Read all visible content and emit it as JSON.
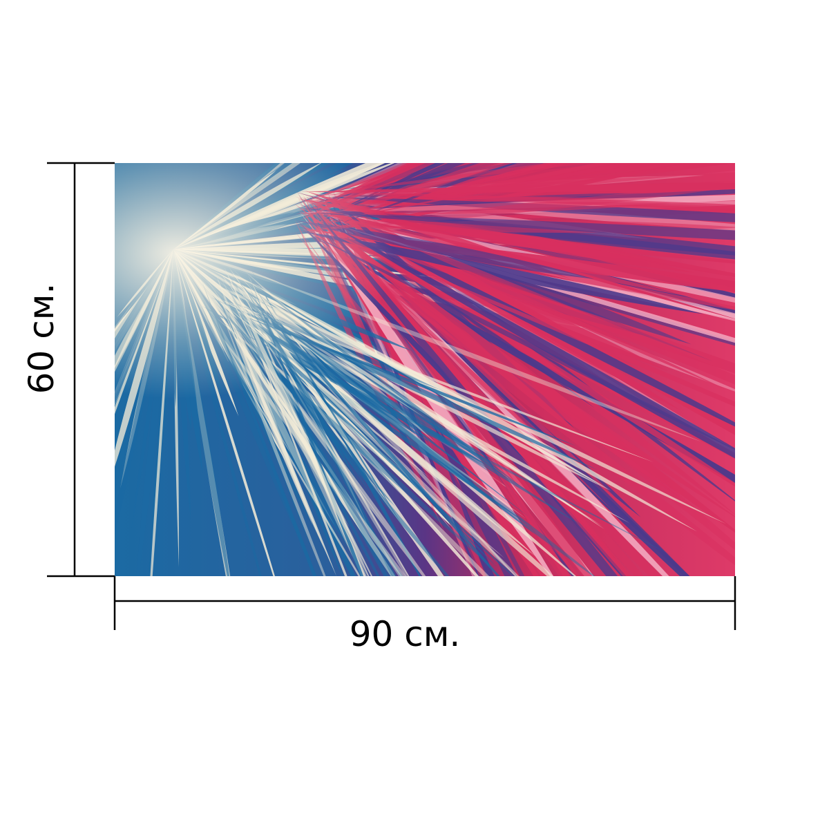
{
  "dimensions": {
    "width_label": "90 см.",
    "height_label": "60 см."
  },
  "artwork": {
    "subject": "palm-leaf-fan",
    "colors": {
      "blue": "#1b6aa3",
      "cream": "#f3ecd8",
      "crimson": "#d8305f",
      "purple": "#4a3a8c",
      "line": "#000000"
    }
  }
}
